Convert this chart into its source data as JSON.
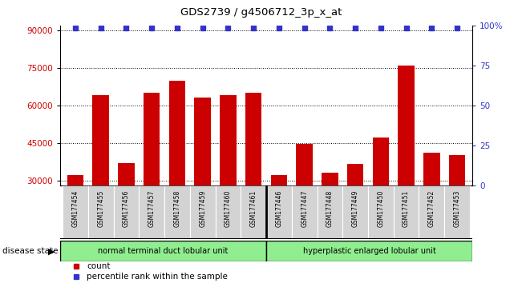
{
  "title": "GDS2739 / g4506712_3p_x_at",
  "samples": [
    "GSM177454",
    "GSM177455",
    "GSM177456",
    "GSM177457",
    "GSM177458",
    "GSM177459",
    "GSM177460",
    "GSM177461",
    "GSM177446",
    "GSM177447",
    "GSM177448",
    "GSM177449",
    "GSM177450",
    "GSM177451",
    "GSM177452",
    "GSM177453"
  ],
  "counts": [
    32000,
    64000,
    37000,
    65000,
    70000,
    63000,
    64000,
    65000,
    32000,
    44500,
    33000,
    36500,
    47000,
    76000,
    41000,
    40000
  ],
  "percentiles": [
    100,
    100,
    100,
    100,
    100,
    100,
    100,
    100,
    100,
    100,
    100,
    100,
    100,
    100,
    100,
    100
  ],
  "bar_color": "#cc0000",
  "percentile_color": "#3333cc",
  "group1_label": "normal terminal duct lobular unit",
  "group2_label": "hyperplastic enlarged lobular unit",
  "group1_count": 8,
  "group2_count": 8,
  "disease_state_label": "disease state",
  "ylim_left": [
    28000,
    92000
  ],
  "ylim_right": [
    0,
    100
  ],
  "yticks_left": [
    30000,
    45000,
    60000,
    75000,
    90000
  ],
  "yticks_right": [
    0,
    25,
    50,
    75,
    100
  ],
  "ytick_labels_right": [
    "0",
    "25",
    "50",
    "75",
    "100%"
  ],
  "legend_count_label": "count",
  "legend_percentile_label": "percentile rank within the sample",
  "background_color": "#ffffff",
  "group_bg_color": "#90EE90",
  "tick_label_bg": "#d3d3d3",
  "spine_color": "#000000"
}
